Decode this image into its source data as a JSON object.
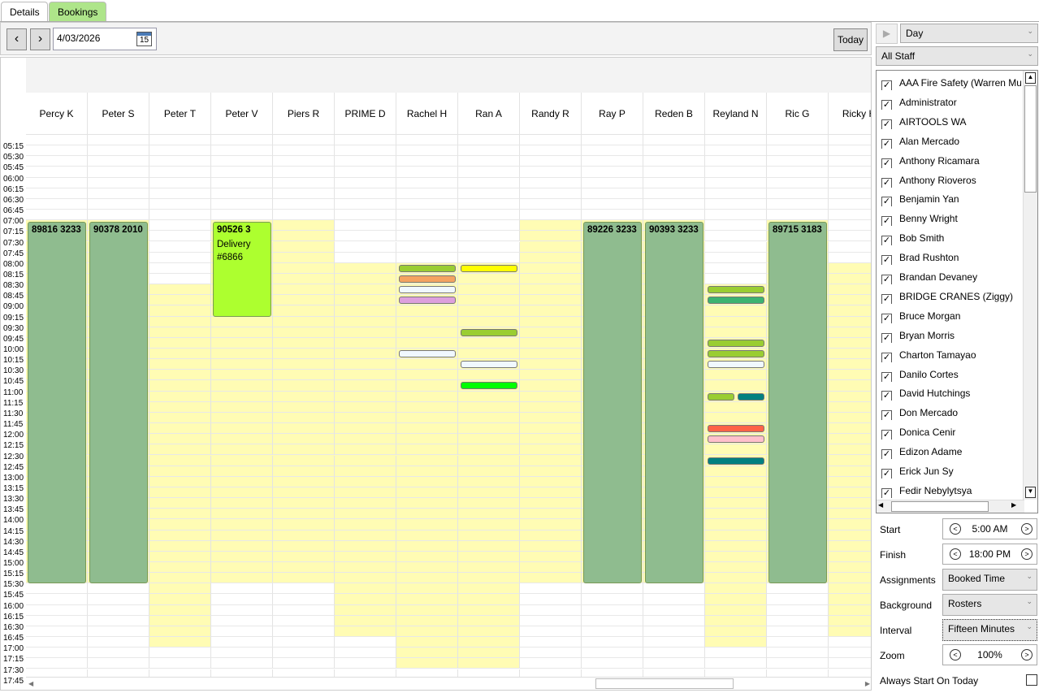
{
  "tabs": [
    {
      "label": "Details",
      "active": false
    },
    {
      "label": "Bookings",
      "active": true
    }
  ],
  "toolbar": {
    "prev_icon": "chevron-left-icon",
    "next_icon": "chevron-right-icon",
    "date": "4/03/2026",
    "calendar_day": "15",
    "today_label": "Today"
  },
  "schedule": {
    "start": "05:00",
    "interval_minutes": 15,
    "time_labels": [
      "05:15",
      "05:30",
      "05:45",
      "06:00",
      "06:15",
      "06:30",
      "06:45",
      "07:00",
      "07:15",
      "07:30",
      "07:45",
      "08:00",
      "08:15",
      "08:30",
      "08:45",
      "09:00",
      "09:15",
      "09:30",
      "09:45",
      "10:00",
      "10:15",
      "10:30",
      "10:45",
      "11:00",
      "11:15",
      "11:30",
      "11:45",
      "12:00",
      "12:15",
      "12:30",
      "12:45",
      "13:00",
      "13:15",
      "13:30",
      "13:45",
      "14:00",
      "14:15",
      "14:30",
      "14:45",
      "15:00",
      "15:15",
      "15:30",
      "15:45",
      "16:00",
      "16:15",
      "16:30",
      "16:45",
      "17:00",
      "17:15",
      "17:30",
      "17:45"
    ],
    "columns": [
      {
        "name": "Percy K",
        "roster": [
          "07:00",
          "15:30"
        ]
      },
      {
        "name": "Peter S",
        "roster": [
          "07:00",
          "15:30"
        ]
      },
      {
        "name": "Peter T",
        "roster": [
          "08:30",
          "17:00"
        ]
      },
      {
        "name": "Peter V",
        "roster": [
          "07:00",
          "15:30"
        ]
      },
      {
        "name": "Piers R",
        "roster": [
          "07:00",
          "15:30"
        ]
      },
      {
        "name": "PRIME D",
        "roster": [
          "08:00",
          "16:45"
        ]
      },
      {
        "name": "Rachel H",
        "roster": [
          "08:00",
          "17:30"
        ]
      },
      {
        "name": "Ran A",
        "roster": [
          "08:00",
          "17:30"
        ]
      },
      {
        "name": "Randy R",
        "roster": [
          "07:00",
          "15:30"
        ]
      },
      {
        "name": "Ray P",
        "roster": [
          "07:00",
          "15:30"
        ]
      },
      {
        "name": "Reden B",
        "roster": [
          "07:00",
          "15:30"
        ]
      },
      {
        "name": "Reyland N",
        "roster": [
          "08:30",
          "17:00"
        ]
      },
      {
        "name": "Ric G",
        "roster": [
          "07:00",
          "15:30"
        ]
      },
      {
        "name": "Ricky H",
        "roster": [
          "08:00",
          "16:45"
        ]
      }
    ],
    "appointments": [
      {
        "col": 0,
        "start": "07:00",
        "end": "15:30",
        "title": "89816 3233",
        "color": "#8fbc8f"
      },
      {
        "col": 1,
        "start": "07:00",
        "end": "15:30",
        "title": "90378 2010",
        "color": "#8fbc8f"
      },
      {
        "col": 3,
        "start": "07:00",
        "end": "09:15",
        "title": "90526 3",
        "subtitle": "Delivery #6866",
        "color": "#adff2f"
      },
      {
        "col": 9,
        "start": "07:00",
        "end": "15:30",
        "title": "89226 3233",
        "color": "#8fbc8f"
      },
      {
        "col": 10,
        "start": "07:00",
        "end": "15:30",
        "title": "90393 3233",
        "color": "#8fbc8f"
      },
      {
        "col": 12,
        "start": "07:00",
        "end": "15:30",
        "title": "89715 3183",
        "color": "#8fbc8f"
      }
    ],
    "bars": [
      {
        "col": 6,
        "time": "08:00",
        "color": "#9acd32"
      },
      {
        "col": 6,
        "time": "08:15",
        "color": "#f4a460"
      },
      {
        "col": 6,
        "time": "08:30",
        "color": "#f0f8ff"
      },
      {
        "col": 6,
        "time": "08:45",
        "color": "#dda0dd"
      },
      {
        "col": 6,
        "time": "10:00",
        "color": "#f0f8ff"
      },
      {
        "col": 7,
        "time": "08:00",
        "color": "#ffff00"
      },
      {
        "col": 7,
        "time": "09:30",
        "color": "#9acd32"
      },
      {
        "col": 7,
        "time": "10:15",
        "color": "#f0f8ff"
      },
      {
        "col": 7,
        "time": "10:45",
        "color": "#00ff00"
      },
      {
        "col": 11,
        "time": "08:30",
        "color": "#9acd32"
      },
      {
        "col": 11,
        "time": "08:45",
        "color": "#3cb371"
      },
      {
        "col": 11,
        "time": "09:45",
        "color": "#9acd32"
      },
      {
        "col": 11,
        "time": "10:00",
        "color": "#9acd32"
      },
      {
        "col": 11,
        "time": "10:15",
        "color": "#f0f8ff"
      },
      {
        "col": 11,
        "time": "11:00",
        "color": "#9acd32",
        "half": 0
      },
      {
        "col": 11,
        "time": "11:00",
        "color": "#008080",
        "half": 1
      },
      {
        "col": 11,
        "time": "11:45",
        "color": "#ff6347"
      },
      {
        "col": 11,
        "time": "12:00",
        "color": "#ffc0cb"
      },
      {
        "col": 11,
        "time": "12:30",
        "color": "#008080"
      }
    ]
  },
  "side": {
    "play_icon": "play-icon",
    "view": "Day",
    "staff_filter": "All Staff",
    "staff": [
      "AAA Fire Safety (Warren Mul",
      "Administrator",
      "AIRTOOLS WA",
      "Alan Mercado",
      "Anthony Ricamara",
      "Anthony Rioveros",
      "Benjamin Yan",
      "Benny Wright",
      "Bob Smith",
      "Brad Rushton",
      "Brandan Devaney",
      "BRIDGE CRANES (Ziggy)",
      "Bruce Morgan",
      "Bryan Morris",
      "Charton Tamayao",
      "Danilo Cortes",
      "David Hutchings",
      "Don Mercado",
      "Donica Cenir",
      "Edizon Adame",
      "Erick Jun Sy",
      "Fedir Nebylytsya"
    ],
    "start_label": "Start",
    "start_value": "5:00 AM",
    "finish_label": "Finish",
    "finish_value": "18:00 PM",
    "assignments_label": "Assignments",
    "assignments_value": "Booked Time",
    "background_label": "Background",
    "background_value": "Rosters",
    "interval_label": "Interval",
    "interval_value": "Fifteen Minutes",
    "zoom_label": "Zoom",
    "zoom_value": "100%",
    "always_today_label": "Always Start On Today",
    "always_today_checked": false
  }
}
